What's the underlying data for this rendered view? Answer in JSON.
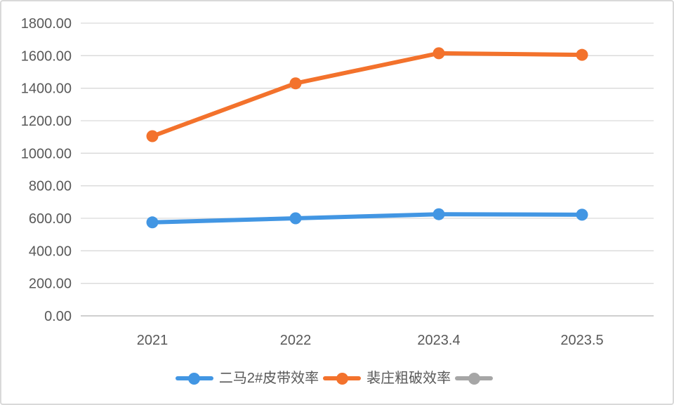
{
  "chart_data": {
    "type": "line",
    "title": "",
    "xlabel": "",
    "ylabel": "",
    "categories": [
      "2021",
      "2022",
      "2023.4",
      "2023.5"
    ],
    "series": [
      {
        "name": "二马2#皮带效率",
        "color": "#4296e3",
        "values": [
          575,
          600,
          625,
          622
        ]
      },
      {
        "name": "裴庄粗破效率",
        "color": "#f3722c",
        "values": [
          1105,
          1430,
          1615,
          1605
        ]
      },
      {
        "name": "",
        "color": "#a6a6a6",
        "values": []
      }
    ],
    "ylim": [
      0,
      1800
    ],
    "y_ticks": [
      "0.00",
      "200.00",
      "400.00",
      "600.00",
      "800.00",
      "1000.00",
      "1200.00",
      "1400.00",
      "1600.00",
      "1800.00"
    ],
    "grid": "horizontal-only",
    "legend_position": "bottom",
    "marker": "circle"
  },
  "colors": {
    "gridline": "#d9d9d9",
    "axis_line": "#bfbfbf",
    "tick_text": "#595959",
    "frame_border": "#d9d9d9",
    "background": "#ffffff"
  }
}
